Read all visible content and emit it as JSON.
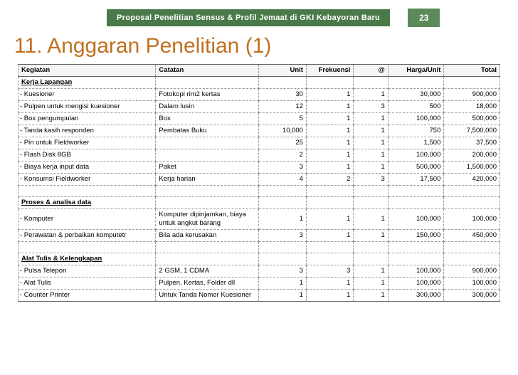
{
  "header": {
    "title": "Proposal Penelitian Sensus & Profil Jemaat di GKI Kebayoran Baru",
    "page": "23"
  },
  "title": "11. Anggaran Penelitian (1)",
  "columns": [
    "Kegiatan",
    "Catatan",
    "Unit",
    "Frekuensi",
    "@",
    "Harga/Unit",
    "Total"
  ],
  "rows": [
    {
      "type": "section",
      "keg": "Kerja Lapangan"
    },
    {
      "type": "item",
      "keg": "- Kuesioner",
      "cat": "Fotokopi rim2 kertas",
      "unit": "30",
      "frek": "1",
      "at": "1",
      "harga": "30,000",
      "total": "900,000"
    },
    {
      "type": "item",
      "keg": "- Pulpen untuk mengisi kuesioner",
      "cat": "Dalam lusin",
      "unit": "12",
      "frek": "1",
      "at": "3",
      "harga": "500",
      "total": "18,000"
    },
    {
      "type": "item",
      "keg": "- Box pengumpulan",
      "cat": "Box",
      "unit": "5",
      "frek": "1",
      "at": "1",
      "harga": "100,000",
      "total": "500,000"
    },
    {
      "type": "item",
      "keg": "- Tanda kasih responden",
      "cat": "Pembatas Buku",
      "unit": "10,000",
      "frek": "1",
      "at": "1",
      "harga": "750",
      "total": "7,500,000"
    },
    {
      "type": "item",
      "keg": "- Pin untuk Fieldworker",
      "cat": "",
      "unit": "25",
      "frek": "1",
      "at": "1",
      "harga": "1,500",
      "total": "37,500"
    },
    {
      "type": "item",
      "keg": "- Flash Disk 8GB",
      "cat": "",
      "unit": "2",
      "frek": "1",
      "at": "1",
      "harga": "100,000",
      "total": "200,000"
    },
    {
      "type": "item",
      "keg": "- Biaya kerja input data",
      "cat": "Paket",
      "unit": "3",
      "frek": "1",
      "at": "1",
      "harga": "500,000",
      "total": "1,500,000"
    },
    {
      "type": "item",
      "keg": "- Konsumsi Fieldworker",
      "cat": "Kerja harian",
      "unit": "4",
      "frek": "2",
      "at": "3",
      "harga": "17,500",
      "total": "420,000"
    },
    {
      "type": "blank"
    },
    {
      "type": "section",
      "keg": "Proses & analisa data"
    },
    {
      "type": "item",
      "keg": "- Komputer",
      "cat": "Komputer dipinjamkan, biaya untuk angkut barang",
      "unit": "1",
      "frek": "1",
      "at": "1",
      "harga": "100,000",
      "total": "100,000"
    },
    {
      "type": "item",
      "keg": "- Perawatan & perbaikan komputetr",
      "cat": "Bila ada kerusakan",
      "unit": "3",
      "frek": "1",
      "at": "1",
      "harga": "150,000",
      "total": "450,000"
    },
    {
      "type": "blank"
    },
    {
      "type": "section",
      "keg": "Alat Tulis & Kelengkapan"
    },
    {
      "type": "item",
      "keg": "- Pulsa Telepon",
      "cat": "2 GSM, 1 CDMA",
      "unit": "3",
      "frek": "3",
      "at": "1",
      "harga": "100,000",
      "total": "900,000"
    },
    {
      "type": "item",
      "keg": "- Alat Tulis",
      "cat": "Pulpen, Kertas, Folder dll",
      "unit": "1",
      "frek": "1",
      "at": "1",
      "harga": "100,000",
      "total": "100,000"
    },
    {
      "type": "item",
      "keg": "- Counter Printer",
      "cat": "Untuk Tanda Nomor Kuesioner",
      "unit": "1",
      "frek": "1",
      "at": "1",
      "harga": "300,000",
      "total": "300,000"
    }
  ]
}
